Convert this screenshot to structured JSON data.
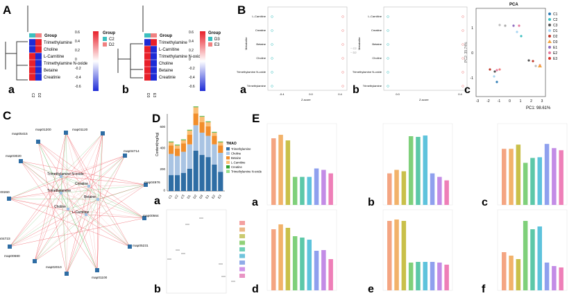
{
  "panel_letters": {
    "A": "A",
    "B": "B",
    "C": "C",
    "D": "D",
    "E": "E"
  },
  "sub_letters": {
    "a": "a",
    "b": "b",
    "c": "c",
    "d": "d",
    "e": "e",
    "f": "f"
  },
  "heatmap_a": {
    "group_label": "Group",
    "legend_title": "Group",
    "groups": [
      "C2",
      "D2"
    ],
    "group_colors": [
      "#3bbfbf",
      "#f08080"
    ],
    "rows": [
      "Trimethylamine",
      "Choline",
      "L-Carnitine",
      "Trimethylamine N-oxide",
      "Betaine",
      "Creatinie"
    ],
    "scale_ticks": [
      "0.6",
      "0.4",
      "0.2",
      "0",
      "-0.2",
      "-0.4",
      "-0.6"
    ]
  },
  "heatmap_b": {
    "group_label": "Group",
    "legend_title": "Group",
    "groups": [
      "D3",
      "E3"
    ],
    "group_colors": [
      "#3bbfbf",
      "#f08080"
    ],
    "rows": [
      "Trimethylamine",
      "L-Carnitine",
      "Trimethylamine N-oxide",
      "Choline",
      "Betaine",
      "Creatinie"
    ],
    "scale_ticks": [
      "0.6",
      "0.4",
      "0.2",
      "0",
      "-0.2",
      "-0.4",
      "-0.6"
    ]
  },
  "dotplot_a": {
    "ylabel": "Metabolite",
    "xlabel": "Z-score",
    "rows": [
      "L-Carnitine",
      "Creatine",
      "Betaine",
      "Choline",
      "Trimethylamine N-oxide",
      "Trimethylamine"
    ],
    "xticks": [
      "-0.4",
      "0.0",
      "0.4"
    ]
  },
  "dotplot_b": {
    "ylabel": "Metabolite",
    "xlabel": "Z-score",
    "rows": [
      "L-Carnitine",
      "Creatine",
      "Betaine",
      "Choline",
      "Trimethylamine N-oxide",
      "Trimethylamine"
    ],
    "xticks": [
      "0.0",
      "0.4"
    ]
  },
  "pca": {
    "title": "PCA",
    "xlabel": "PC1: 98.61%",
    "ylabel": "PC2: 39.74%",
    "xticks": [
      "-3",
      "-2",
      "-1",
      "0",
      "1",
      "2",
      "3"
    ],
    "yticks": [
      "1",
      "0",
      "-1"
    ],
    "legend": [
      {
        "name": "C1",
        "color": "#2c7bb6",
        "marker": "circle"
      },
      {
        "name": "C2",
        "color": "#3bbfbf",
        "marker": "circle"
      },
      {
        "name": "C3",
        "color": "#555555",
        "marker": "circle"
      },
      {
        "name": "D1",
        "color": "#a6d4f2",
        "marker": "circle"
      },
      {
        "name": "D2",
        "color": "#c0392b",
        "marker": "circle"
      },
      {
        "name": "D3",
        "color": "#f1a340",
        "marker": "triangle"
      },
      {
        "name": "E1",
        "color": "#8e6bbf",
        "marker": "circle"
      },
      {
        "name": "E2",
        "color": "#e6799e",
        "marker": "circle"
      },
      {
        "name": "E3",
        "color": "#d73027",
        "marker": "circle"
      }
    ]
  },
  "network": {
    "outer_nodes": [
      "map01200",
      "map01120",
      "map04714",
      "map04976",
      "map00564",
      "map05231",
      "map01100",
      "map02010",
      "map00680",
      "map04723",
      "map00260",
      "map03020",
      "map05415"
    ],
    "inner_nodes": [
      "Trimethylamine N-oxide",
      "Trimethylamine",
      "Creatine",
      "Betaine",
      "Choline",
      "L-Carnitine"
    ]
  },
  "stacked_bar": {
    "ylabel": "Content(mg/kg)",
    "legend_title": "TMAO",
    "yticks": [
      "600",
      "400",
      "200",
      "0"
    ],
    "categories": [
      "C1",
      "C2",
      "C3",
      "D1",
      "D2",
      "D3",
      "E1",
      "E2",
      "E3"
    ],
    "series": [
      {
        "name": "Trimethylamine",
        "color": "#2e6da4",
        "values": [
          150,
          150,
          170,
          210,
          380,
          340,
          320,
          250,
          180
        ]
      },
      {
        "name": "Choline",
        "color": "#a9c4e3",
        "values": [
          200,
          180,
          200,
          230,
          240,
          210,
          200,
          190,
          180
        ]
      },
      {
        "name": "Betaine",
        "color": "#f28e2b",
        "values": [
          80,
          70,
          80,
          90,
          110,
          100,
          90,
          80,
          70
        ]
      },
      {
        "name": "L-Carnitine",
        "color": "#fbbf74",
        "values": [
          30,
          30,
          30,
          40,
          60,
          50,
          40,
          30,
          30
        ]
      },
      {
        "name": "Creatine",
        "color": "#2ca02c",
        "values": [
          5,
          5,
          5,
          5,
          5,
          5,
          5,
          5,
          5
        ]
      },
      {
        "name": "Trimethylamine N-oxide",
        "color": "#98df8a",
        "values": [
          3,
          3,
          3,
          3,
          3,
          3,
          3,
          3,
          3
        ]
      }
    ]
  },
  "legend_colors": [
    "#f08080",
    "#e6a060",
    "#b8b840",
    "#6cc24a",
    "#40c0a0",
    "#40b0d0",
    "#6a8fe0",
    "#c070e0",
    "#e070b0"
  ],
  "bar_colors": [
    "#f4a582",
    "#f2b26a",
    "#c9c04a",
    "#7fd07a",
    "#5cc8a8",
    "#5ec3dc",
    "#8fa0ee",
    "#c38ce6",
    "#ee7fb8"
  ],
  "bar_panels": [
    {
      "letter": "a",
      "values": [
        95,
        100,
        92,
        40,
        40,
        40,
        52,
        50,
        45
      ]
    },
    {
      "letter": "b",
      "values": [
        45,
        50,
        48,
        98,
        97,
        99,
        45,
        40,
        35
      ]
    },
    {
      "letter": "c",
      "values": [
        80,
        80,
        86,
        60,
        67,
        68,
        87,
        81,
        78
      ]
    },
    {
      "letter": "d",
      "values": [
        88,
        95,
        90,
        78,
        76,
        73,
        57,
        58,
        45
      ]
    },
    {
      "letter": "e",
      "values": [
        100,
        102,
        100,
        40,
        41,
        41,
        41,
        40,
        37
      ]
    },
    {
      "letter": "f",
      "values": [
        55,
        50,
        45,
        100,
        88,
        92,
        40,
        35,
        33
      ]
    }
  ]
}
